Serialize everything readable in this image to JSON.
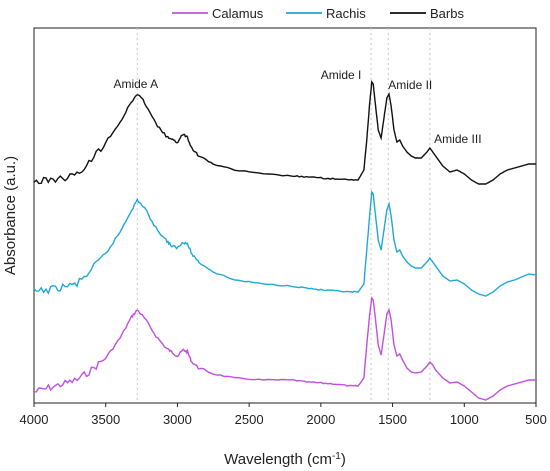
{
  "chart_data": {
    "type": "line",
    "xlabel": "Wavelength (cm",
    "xlabel_superscript": "-1",
    "xlabel_suffix": ")",
    "ylabel": "Absorbance (a.u.)",
    "xlim": [
      4000,
      500
    ],
    "x_reversed": true,
    "xticks": [
      4000,
      3500,
      3000,
      2500,
      2000,
      1500,
      1000,
      500
    ],
    "legend": {
      "placement": "top",
      "entries": [
        "Calamus",
        "Rachis",
        "Barbs"
      ]
    },
    "grid": false,
    "reference_lines_x": [
      3280,
      1650,
      1530,
      1240
    ],
    "annotations": [
      {
        "text": "Amide A",
        "x": 3290
      },
      {
        "text": "Amide I",
        "x": 1650
      },
      {
        "text": "Amide II",
        "x": 1530
      },
      {
        "text": "Amide III",
        "x": 1240
      }
    ],
    "series": [
      {
        "name": "Calamus",
        "color": "#c050e0",
        "points": [
          [
            4000,
            392
          ],
          [
            3900,
            388
          ],
          [
            3800,
            384
          ],
          [
            3700,
            380
          ],
          [
            3600,
            370
          ],
          [
            3500,
            358
          ],
          [
            3400,
            338
          ],
          [
            3320,
            317
          ],
          [
            3280,
            310
          ],
          [
            3230,
            318
          ],
          [
            3150,
            336
          ],
          [
            3080,
            348
          ],
          [
            3040,
            352
          ],
          [
            3000,
            356
          ],
          [
            2960,
            350
          ],
          [
            2930,
            352
          ],
          [
            2900,
            362
          ],
          [
            2850,
            368
          ],
          [
            2750,
            374
          ],
          [
            2600,
            378
          ],
          [
            2400,
            380
          ],
          [
            2200,
            380
          ],
          [
            2100,
            382
          ],
          [
            2000,
            383
          ],
          [
            1900,
            384
          ],
          [
            1800,
            386
          ],
          [
            1740,
            386
          ],
          [
            1700,
            378
          ],
          [
            1680,
            345
          ],
          [
            1660,
            315
          ],
          [
            1645,
            298
          ],
          [
            1635,
            300
          ],
          [
            1620,
            318
          ],
          [
            1600,
            345
          ],
          [
            1580,
            355
          ],
          [
            1560,
            335
          ],
          [
            1540,
            314
          ],
          [
            1525,
            310
          ],
          [
            1510,
            320
          ],
          [
            1490,
            345
          ],
          [
            1470,
            356
          ],
          [
            1450,
            354
          ],
          [
            1430,
            360
          ],
          [
            1400,
            368
          ],
          [
            1370,
            372
          ],
          [
            1340,
            373
          ],
          [
            1300,
            372
          ],
          [
            1260,
            366
          ],
          [
            1240,
            362
          ],
          [
            1220,
            365
          ],
          [
            1200,
            370
          ],
          [
            1150,
            378
          ],
          [
            1100,
            383
          ],
          [
            1050,
            382
          ],
          [
            1000,
            386
          ],
          [
            950,
            392
          ],
          [
            900,
            398
          ],
          [
            850,
            400
          ],
          [
            800,
            396
          ],
          [
            750,
            390
          ],
          [
            700,
            386
          ],
          [
            650,
            384
          ],
          [
            600,
            382
          ],
          [
            550,
            380
          ],
          [
            500,
            380
          ]
        ]
      },
      {
        "name": "Rachis",
        "color": "#20a8d8",
        "points": [
          [
            4000,
            292
          ],
          [
            3900,
            290
          ],
          [
            3800,
            287
          ],
          [
            3700,
            284
          ],
          [
            3600,
            270
          ],
          [
            3500,
            254
          ],
          [
            3400,
            232
          ],
          [
            3320,
            210
          ],
          [
            3280,
            200
          ],
          [
            3230,
            208
          ],
          [
            3150,
            228
          ],
          [
            3080,
            240
          ],
          [
            3040,
            246
          ],
          [
            3000,
            248
          ],
          [
            2960,
            242
          ],
          [
            2930,
            244
          ],
          [
            2900,
            254
          ],
          [
            2850,
            262
          ],
          [
            2750,
            272
          ],
          [
            2600,
            280
          ],
          [
            2400,
            284
          ],
          [
            2200,
            286
          ],
          [
            2100,
            288
          ],
          [
            2000,
            290
          ],
          [
            1900,
            291
          ],
          [
            1800,
            292
          ],
          [
            1740,
            292
          ],
          [
            1700,
            284
          ],
          [
            1680,
            250
          ],
          [
            1660,
            216
          ],
          [
            1645,
            192
          ],
          [
            1635,
            194
          ],
          [
            1620,
            214
          ],
          [
            1600,
            240
          ],
          [
            1580,
            250
          ],
          [
            1560,
            230
          ],
          [
            1540,
            210
          ],
          [
            1525,
            204
          ],
          [
            1510,
            216
          ],
          [
            1490,
            240
          ],
          [
            1470,
            252
          ],
          [
            1450,
            250
          ],
          [
            1430,
            256
          ],
          [
            1400,
            262
          ],
          [
            1370,
            266
          ],
          [
            1340,
            268
          ],
          [
            1300,
            268
          ],
          [
            1260,
            262
          ],
          [
            1240,
            258
          ],
          [
            1220,
            262
          ],
          [
            1200,
            266
          ],
          [
            1150,
            276
          ],
          [
            1100,
            281
          ],
          [
            1050,
            280
          ],
          [
            1000,
            284
          ],
          [
            950,
            290
          ],
          [
            900,
            294
          ],
          [
            850,
            296
          ],
          [
            800,
            292
          ],
          [
            750,
            286
          ],
          [
            700,
            282
          ],
          [
            650,
            280
          ],
          [
            600,
            277
          ],
          [
            550,
            274
          ],
          [
            500,
            275
          ]
        ]
      },
      {
        "name": "Barbs",
        "color": "#111111",
        "points": [
          [
            4000,
            182
          ],
          [
            3900,
            180
          ],
          [
            3800,
            178
          ],
          [
            3700,
            175
          ],
          [
            3600,
            160
          ],
          [
            3500,
            142
          ],
          [
            3400,
            122
          ],
          [
            3320,
            102
          ],
          [
            3280,
            94
          ],
          [
            3230,
            102
          ],
          [
            3150,
            124
          ],
          [
            3080,
            136
          ],
          [
            3040,
            140
          ],
          [
            3000,
            142
          ],
          [
            2960,
            134
          ],
          [
            2930,
            137
          ],
          [
            2900,
            148
          ],
          [
            2850,
            156
          ],
          [
            2750,
            164
          ],
          [
            2600,
            170
          ],
          [
            2400,
            174
          ],
          [
            2200,
            176
          ],
          [
            2100,
            177
          ],
          [
            2000,
            178
          ],
          [
            1900,
            179
          ],
          [
            1800,
            180
          ],
          [
            1740,
            180
          ],
          [
            1700,
            170
          ],
          [
            1680,
            140
          ],
          [
            1660,
            104
          ],
          [
            1645,
            82
          ],
          [
            1635,
            84
          ],
          [
            1620,
            104
          ],
          [
            1600,
            130
          ],
          [
            1580,
            138
          ],
          [
            1560,
            118
          ],
          [
            1540,
            98
          ],
          [
            1525,
            94
          ],
          [
            1510,
            106
          ],
          [
            1490,
            130
          ],
          [
            1470,
            142
          ],
          [
            1450,
            140
          ],
          [
            1430,
            146
          ],
          [
            1400,
            152
          ],
          [
            1370,
            156
          ],
          [
            1340,
            158
          ],
          [
            1300,
            158
          ],
          [
            1260,
            152
          ],
          [
            1240,
            148
          ],
          [
            1220,
            152
          ],
          [
            1200,
            156
          ],
          [
            1150,
            166
          ],
          [
            1100,
            172
          ],
          [
            1050,
            170
          ],
          [
            1000,
            174
          ],
          [
            950,
            180
          ],
          [
            900,
            184
          ],
          [
            850,
            184
          ],
          [
            800,
            180
          ],
          [
            750,
            174
          ],
          [
            700,
            170
          ],
          [
            650,
            168
          ],
          [
            600,
            166
          ],
          [
            550,
            164
          ],
          [
            500,
            164
          ]
        ]
      }
    ]
  }
}
